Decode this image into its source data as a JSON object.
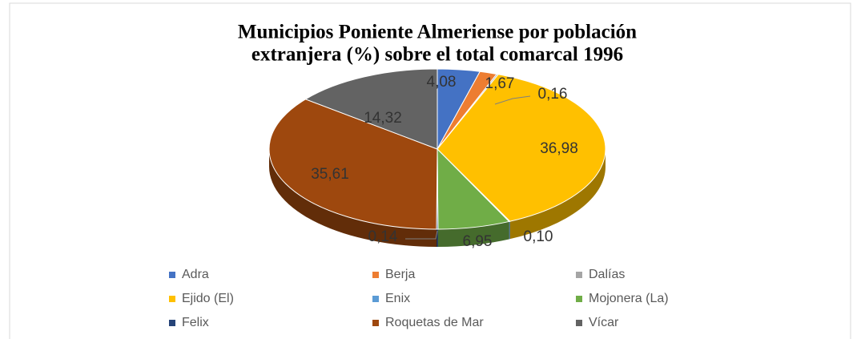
{
  "chart_data": {
    "type": "pie3d",
    "title": [
      "Municipios Poniente Almeriense por población",
      "extranjera (%) sobre el total comarcal 1996"
    ],
    "categories": [
      "Adra",
      "Berja",
      "Dalías",
      "Ejido (El)",
      "Enix",
      "Mojonera (La)",
      "Felix",
      "Roquetas de Mar",
      "Vícar"
    ],
    "values": [
      4.08,
      1.67,
      0.16,
      36.98,
      0.1,
      6.95,
      0.14,
      35.61,
      14.32
    ],
    "value_labels": [
      "4,08",
      "1,67",
      "0,16",
      "36,98",
      "0,10",
      "6,95",
      "0,14",
      "35,61",
      "14,32"
    ],
    "colors": [
      "#4472c4",
      "#ed7d31",
      "#a5a5a5",
      "#ffc000",
      "#5b9bd5",
      "#70ad47",
      "#264478",
      "#9e480e",
      "#636363"
    ],
    "legend": "bottom"
  }
}
